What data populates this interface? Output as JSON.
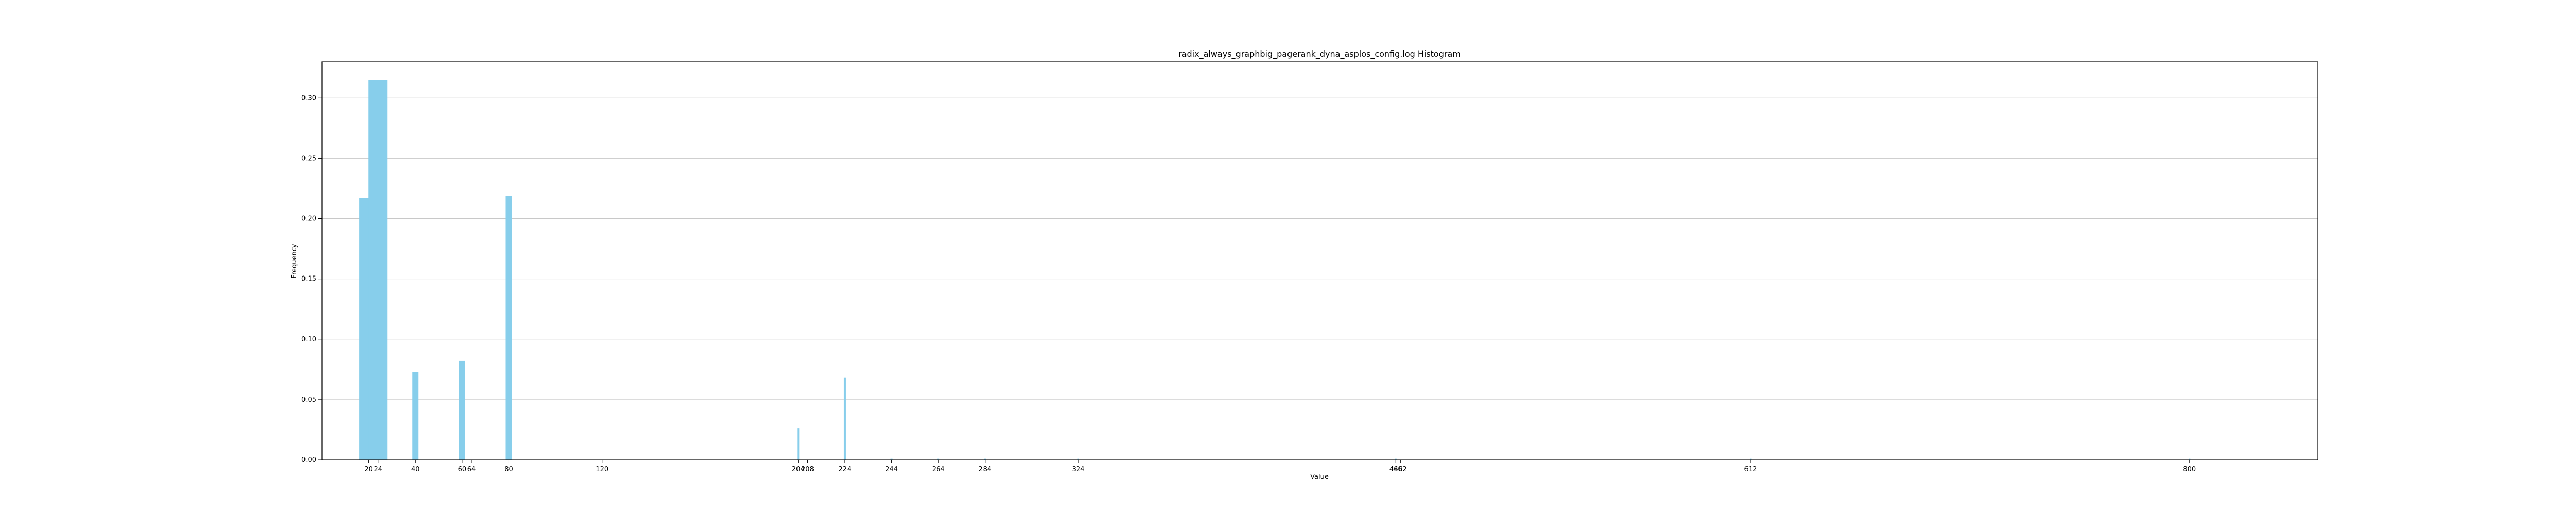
{
  "chart_data": {
    "type": "bar",
    "title": "radix_always_graphbig_pagerank_dyna_asplos_config.log Histogram",
    "xlabel": "Value",
    "ylabel": "Frequency",
    "ylim": [
      0,
      0.33
    ],
    "xlim": [
      0,
      855
    ],
    "grid": "y",
    "bar_color": "#87ceeb",
    "x_ticks": [
      20,
      24,
      40,
      60,
      64,
      80,
      120,
      204,
      208,
      224,
      244,
      264,
      284,
      324,
      460,
      462,
      612,
      800
    ],
    "x_tick_labels": [
      "20",
      "24",
      "40",
      "60",
      "64",
      "80",
      "120",
      "204",
      "208",
      "224",
      "244",
      "264",
      "284",
      "324",
      "460",
      "462",
      "612",
      "800"
    ],
    "y_ticks": [
      0.0,
      0.05,
      0.1,
      0.15,
      0.2,
      0.25,
      0.3
    ],
    "y_tick_labels": [
      "0.00",
      "0.05",
      "0.10",
      "0.15",
      "0.20",
      "0.25",
      "0.30"
    ],
    "bars": [
      {
        "x": 20,
        "value": 0.217
      },
      {
        "x": 24,
        "value": 0.315
      },
      {
        "x": 40,
        "value": 0.073
      },
      {
        "x": 60,
        "value": 0.082
      },
      {
        "x": 80,
        "value": 0.219
      },
      {
        "x": 204,
        "value": 0.026
      },
      {
        "x": 224,
        "value": 0.068
      },
      {
        "x": 244,
        "value": 0.001
      },
      {
        "x": 264,
        "value": 0.001
      },
      {
        "x": 284,
        "value": 0.001
      },
      {
        "x": 324,
        "value": 0.001
      },
      {
        "x": 460,
        "value": 0.001
      },
      {
        "x": 612,
        "value": 0.001
      },
      {
        "x": 800,
        "value": 0.001
      }
    ]
  }
}
